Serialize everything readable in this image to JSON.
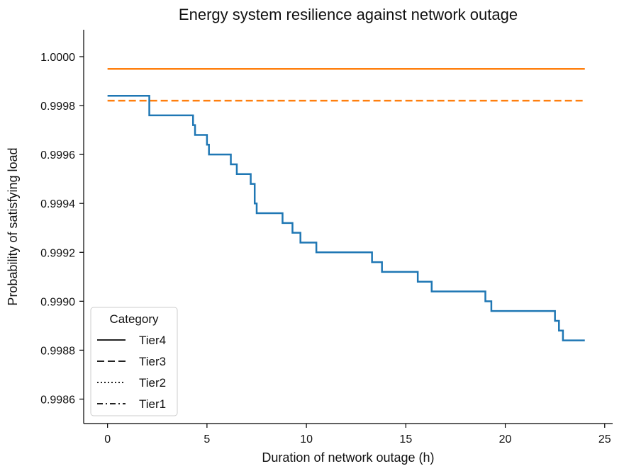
{
  "chart_data": {
    "type": "line",
    "title": "Energy system resilience against network outage",
    "xlabel": "Duration of network outage (h)",
    "ylabel": "Probability of satisfying load",
    "xlim": [
      -1.2,
      25.4
    ],
    "ylim": [
      0.9985,
      1.00011
    ],
    "xticks": [
      0,
      5,
      10,
      15,
      20,
      25
    ],
    "xtick_labels": [
      "0",
      "5",
      "10",
      "15",
      "20",
      "25"
    ],
    "yticks": [
      0.9986,
      0.9988,
      0.999,
      0.9992,
      0.9994,
      0.9996,
      0.9998,
      1.0
    ],
    "ytick_labels": [
      "0.9986",
      "0.9988",
      "0.9990",
      "0.9992",
      "0.9994",
      "0.9996",
      "0.9998",
      "1.0000"
    ],
    "grid": false,
    "legend": {
      "title": "Category",
      "position": "lower-left",
      "entries": [
        {
          "label": "Tier4",
          "dash": "solid"
        },
        {
          "label": "Tier3",
          "dash": "dashed"
        },
        {
          "label": "Tier2",
          "dash": "dotted"
        },
        {
          "label": "Tier1",
          "dash": "dashdot"
        }
      ]
    },
    "series": [
      {
        "color": "#ff7f0e",
        "dash": "solid",
        "step": false,
        "x": [
          0,
          24
        ],
        "y": [
          0.99995,
          0.99995
        ]
      },
      {
        "color": "#ff7f0e",
        "dash": "dashed",
        "step": false,
        "x": [
          0,
          24
        ],
        "y": [
          0.99982,
          0.99982
        ]
      },
      {
        "color": "#1f77b4",
        "dash": "solid",
        "step": true,
        "x": [
          0,
          2.1,
          4.3,
          4.4,
          5.0,
          5.1,
          6.2,
          6.5,
          7.2,
          7.4,
          7.5,
          8.8,
          9.3,
          9.7,
          10.5,
          13.3,
          13.8,
          15.6,
          16.3,
          19.0,
          19.3,
          22.5,
          22.7,
          22.9,
          24.0
        ],
        "y": [
          0.99984,
          0.99976,
          0.99972,
          0.99968,
          0.99964,
          0.9996,
          0.99956,
          0.99952,
          0.99948,
          0.9994,
          0.99936,
          0.99932,
          0.99928,
          0.99924,
          0.9992,
          0.99916,
          0.99912,
          0.99908,
          0.99904,
          0.999,
          0.99896,
          0.99892,
          0.99888,
          0.99884,
          0.99884
        ]
      }
    ]
  }
}
